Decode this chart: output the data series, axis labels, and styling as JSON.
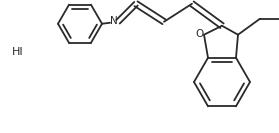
{
  "bg_color": "#ffffff",
  "line_color": "#2a2a2a",
  "line_width": 1.3,
  "text_color": "#2a2a2a",
  "hi_text": "HI",
  "hi_fontsize": 8.0,
  "n_fontsize": 7.5,
  "o_fontsize": 7.5
}
